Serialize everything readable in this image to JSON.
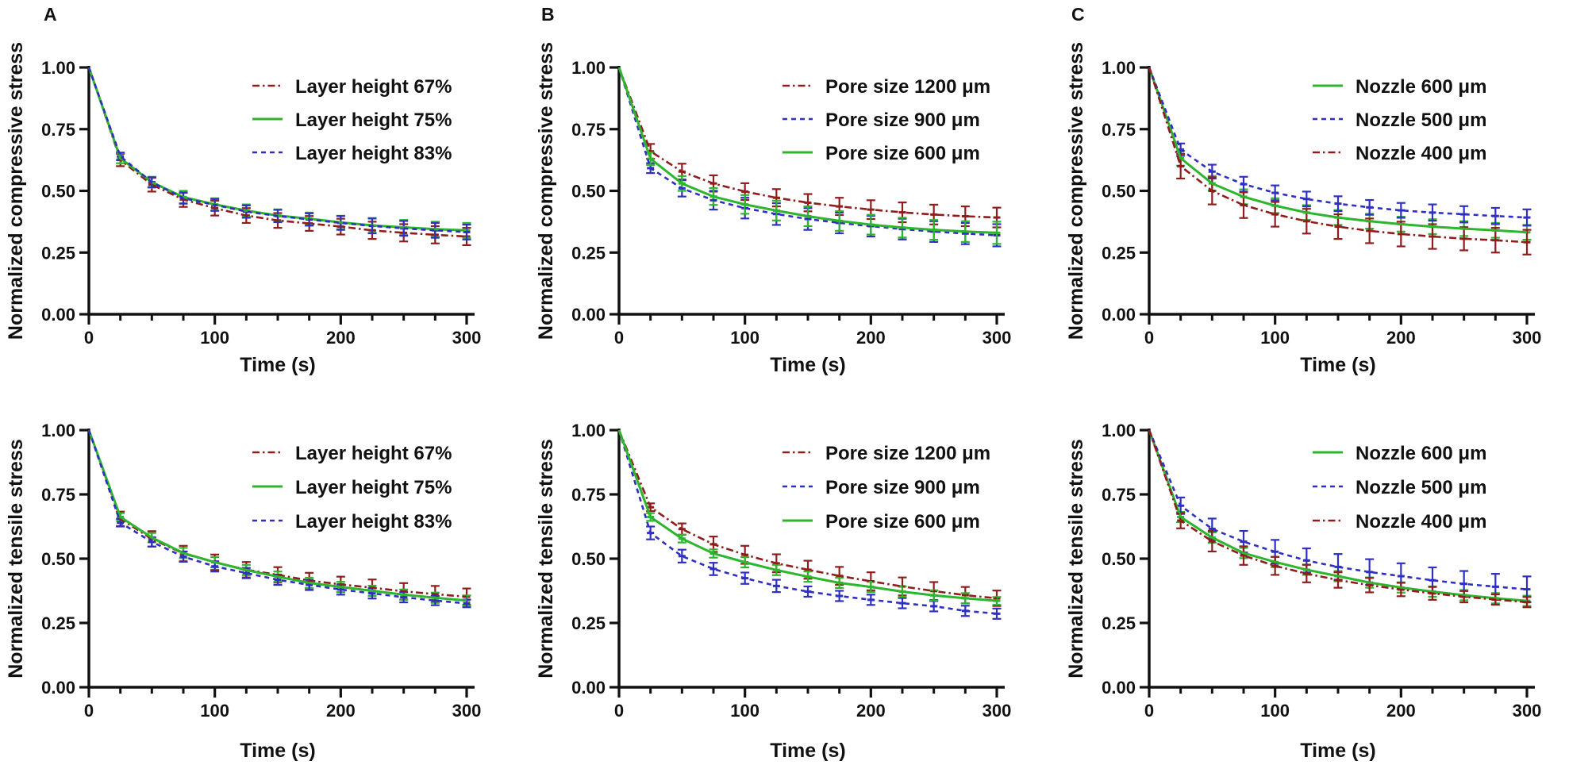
{
  "figure": {
    "background": "#ffffff",
    "colors": {
      "green": "#2db52d",
      "blue": "#2f2fc1",
      "dark_red": "#8f1d1d",
      "axis": "#111111",
      "text": "#111111"
    },
    "panel_letters": [
      "A",
      "B",
      "C"
    ],
    "xlabel": "Time (s)",
    "ylabel_top": "Normalized compressive stress",
    "ylabel_bottom": "Normalized tensile stress"
  },
  "chart_data": [
    {
      "id": "panel-a-compressive",
      "type": "line",
      "panel_letter": "A",
      "xlabel": "Time (s)",
      "ylabel": "Normalized compressive stress",
      "xlim": [
        0,
        300
      ],
      "ylim": [
        0,
        1.0
      ],
      "xticks": [
        0,
        100,
        200,
        300
      ],
      "xtick_minor_step": 25,
      "yticks": [
        "0.00",
        "0.25",
        "0.50",
        "0.75",
        "1.00"
      ],
      "grid": false,
      "legend_position": "top-right",
      "x": [
        0,
        25,
        50,
        75,
        100,
        125,
        150,
        175,
        200,
        225,
        250,
        275,
        300
      ],
      "series": [
        {
          "name": "Layer height 67%",
          "color": "dark_red",
          "style": "dashdot",
          "values": [
            1.0,
            0.625,
            0.525,
            0.465,
            0.43,
            0.4,
            0.38,
            0.368,
            0.355,
            0.34,
            0.33,
            0.322,
            0.315
          ],
          "err": [
            0,
            0.025,
            0.028,
            0.03,
            0.03,
            0.03,
            0.03,
            0.03,
            0.032,
            0.035,
            0.035,
            0.035,
            0.035
          ]
        },
        {
          "name": "Layer height 75%",
          "color": "green",
          "style": "solid",
          "values": [
            1.0,
            0.632,
            0.535,
            0.475,
            0.445,
            0.42,
            0.4,
            0.387,
            0.372,
            0.36,
            0.352,
            0.345,
            0.34
          ],
          "err": [
            0,
            0.02,
            0.022,
            0.025,
            0.025,
            0.025,
            0.025,
            0.025,
            0.027,
            0.03,
            0.03,
            0.03,
            0.03
          ]
        },
        {
          "name": "Layer height 83%",
          "color": "blue",
          "style": "dashed",
          "values": [
            1.0,
            0.64,
            0.535,
            0.47,
            0.443,
            0.416,
            0.398,
            0.384,
            0.37,
            0.358,
            0.348,
            0.34,
            0.333
          ],
          "err": [
            0,
            0.015,
            0.02,
            0.022,
            0.024,
            0.025,
            0.025,
            0.025,
            0.028,
            0.03,
            0.03,
            0.03,
            0.03
          ]
        }
      ]
    },
    {
      "id": "panel-b-compressive",
      "type": "line",
      "panel_letter": "B",
      "xlabel": "Time (s)",
      "ylabel": "Normalized compressive stress",
      "xlim": [
        0,
        300
      ],
      "ylim": [
        0,
        1.0
      ],
      "xticks": [
        0,
        100,
        200,
        300
      ],
      "xtick_minor_step": 25,
      "yticks": [
        "0.00",
        "0.25",
        "0.50",
        "0.75",
        "1.00"
      ],
      "grid": false,
      "legend_position": "top-right",
      "x": [
        0,
        25,
        50,
        75,
        100,
        125,
        150,
        175,
        200,
        225,
        250,
        275,
        300
      ],
      "series": [
        {
          "name": "Pore size 1200 μm",
          "color": "dark_red",
          "style": "dashdot",
          "values": [
            1.0,
            0.66,
            0.578,
            0.53,
            0.497,
            0.472,
            0.452,
            0.437,
            0.424,
            0.413,
            0.404,
            0.397,
            0.392
          ],
          "err": [
            0,
            0.03,
            0.032,
            0.033,
            0.034,
            0.035,
            0.035,
            0.035,
            0.038,
            0.04,
            0.04,
            0.04,
            0.04
          ]
        },
        {
          "name": "Pore size 900 μm",
          "color": "blue",
          "style": "dashed",
          "values": [
            1.0,
            0.592,
            0.51,
            0.462,
            0.43,
            0.406,
            0.386,
            0.37,
            0.357,
            0.345,
            0.335,
            0.327,
            0.32
          ],
          "err": [
            0,
            0.02,
            0.033,
            0.038,
            0.042,
            0.044,
            0.044,
            0.042,
            0.042,
            0.042,
            0.042,
            0.043,
            0.045
          ]
        },
        {
          "name": "Pore size 600 μm",
          "color": "green",
          "style": "solid",
          "values": [
            1.0,
            0.63,
            0.53,
            0.477,
            0.445,
            0.42,
            0.397,
            0.378,
            0.363,
            0.351,
            0.342,
            0.335,
            0.33
          ],
          "err": [
            0,
            0.025,
            0.03,
            0.034,
            0.038,
            0.04,
            0.04,
            0.04,
            0.04,
            0.04,
            0.04,
            0.042,
            0.045
          ]
        }
      ]
    },
    {
      "id": "panel-c-compressive",
      "type": "line",
      "panel_letter": "C",
      "xlabel": "Time (s)",
      "ylabel": "Normalized compressive stress",
      "xlim": [
        0,
        300
      ],
      "ylim": [
        0,
        1.0
      ],
      "xticks": [
        0,
        100,
        200,
        300
      ],
      "xtick_minor_step": 25,
      "yticks": [
        "0.00",
        "0.25",
        "0.50",
        "0.75",
        "1.00"
      ],
      "grid": false,
      "legend_position": "top-right",
      "x": [
        0,
        25,
        50,
        75,
        100,
        125,
        150,
        175,
        200,
        225,
        250,
        275,
        300
      ],
      "series": [
        {
          "name": "Nozzle 600 μm",
          "color": "green",
          "style": "solid",
          "values": [
            1.0,
            0.632,
            0.53,
            0.476,
            0.44,
            0.412,
            0.392,
            0.377,
            0.365,
            0.355,
            0.347,
            0.34,
            0.332
          ],
          "err": [
            0,
            0.03,
            0.03,
            0.03,
            0.03,
            0.03,
            0.03,
            0.03,
            0.03,
            0.03,
            0.03,
            0.03,
            0.03
          ]
        },
        {
          "name": "Nozzle 500 μm",
          "color": "blue",
          "style": "dashed",
          "values": [
            1.0,
            0.667,
            0.578,
            0.527,
            0.492,
            0.467,
            0.448,
            0.433,
            0.421,
            0.412,
            0.405,
            0.398,
            0.392
          ],
          "err": [
            0,
            0.025,
            0.028,
            0.03,
            0.03,
            0.03,
            0.03,
            0.03,
            0.03,
            0.033,
            0.033,
            0.033,
            0.033
          ]
        },
        {
          "name": "Nozzle 400 μm",
          "color": "dark_red",
          "style": "dashdot",
          "values": [
            1.0,
            0.6,
            0.5,
            0.442,
            0.405,
            0.377,
            0.355,
            0.338,
            0.325,
            0.315,
            0.306,
            0.3,
            0.292
          ],
          "err": [
            0,
            0.05,
            0.055,
            0.052,
            0.05,
            0.05,
            0.05,
            0.05,
            0.05,
            0.05,
            0.047,
            0.05,
            0.05
          ]
        }
      ]
    },
    {
      "id": "panel-a-tensile",
      "type": "line",
      "panel_letter": "",
      "xlabel": "Time (s)",
      "ylabel": "Normalized tensile stress",
      "xlim": [
        0,
        300
      ],
      "ylim": [
        0,
        1.0
      ],
      "xticks": [
        0,
        100,
        200,
        300
      ],
      "xtick_minor_step": 25,
      "yticks": [
        "0.00",
        "0.25",
        "0.50",
        "0.75",
        "1.00"
      ],
      "grid": false,
      "legend_position": "top-right",
      "x": [
        0,
        25,
        50,
        75,
        100,
        125,
        150,
        175,
        200,
        225,
        250,
        275,
        300
      ],
      "series": [
        {
          "name": "Layer height 67%",
          "color": "dark_red",
          "style": "dashdot",
          "values": [
            1.0,
            0.655,
            0.577,
            0.52,
            0.486,
            0.457,
            0.437,
            0.415,
            0.4,
            0.387,
            0.373,
            0.362,
            0.352
          ],
          "err": [
            0,
            0.028,
            0.03,
            0.03,
            0.03,
            0.03,
            0.03,
            0.03,
            0.03,
            0.032,
            0.032,
            0.032,
            0.032
          ]
        },
        {
          "name": "Layer height 75%",
          "color": "green",
          "style": "solid",
          "values": [
            1.0,
            0.662,
            0.582,
            0.522,
            0.486,
            0.456,
            0.43,
            0.406,
            0.39,
            0.375,
            0.36,
            0.348,
            0.337
          ],
          "err": [
            0,
            0.015,
            0.018,
            0.02,
            0.02,
            0.02,
            0.02,
            0.02,
            0.02,
            0.02,
            0.02,
            0.02,
            0.02
          ]
        },
        {
          "name": "Layer height 83%",
          "color": "blue",
          "style": "dashed",
          "values": [
            1.0,
            0.64,
            0.565,
            0.508,
            0.47,
            0.444,
            0.418,
            0.398,
            0.38,
            0.365,
            0.35,
            0.337,
            0.326
          ],
          "err": [
            0,
            0.015,
            0.018,
            0.02,
            0.02,
            0.02,
            0.02,
            0.02,
            0.02,
            0.02,
            0.02,
            0.018,
            0.015
          ]
        }
      ]
    },
    {
      "id": "panel-b-tensile",
      "type": "line",
      "panel_letter": "",
      "xlabel": "Time (s)",
      "ylabel": "Normalized tensile stress",
      "xlim": [
        0,
        300
      ],
      "ylim": [
        0,
        1.0
      ],
      "xticks": [
        0,
        100,
        200,
        300
      ],
      "xtick_minor_step": 25,
      "yticks": [
        "0.00",
        "0.25",
        "0.50",
        "0.75",
        "1.00"
      ],
      "grid": false,
      "legend_position": "top-right",
      "x": [
        0,
        25,
        50,
        75,
        100,
        125,
        150,
        175,
        200,
        225,
        250,
        275,
        300
      ],
      "series": [
        {
          "name": "Pore size 1200 μm",
          "color": "dark_red",
          "style": "dashdot",
          "values": [
            1.0,
            0.7,
            0.615,
            0.556,
            0.515,
            0.482,
            0.457,
            0.433,
            0.412,
            0.392,
            0.374,
            0.358,
            0.346
          ],
          "err": [
            0,
            0.015,
            0.022,
            0.03,
            0.035,
            0.035,
            0.035,
            0.035,
            0.035,
            0.035,
            0.035,
            0.032,
            0.03
          ]
        },
        {
          "name": "Pore size 900 μm",
          "color": "blue",
          "style": "dashed",
          "values": [
            1.0,
            0.6,
            0.51,
            0.46,
            0.424,
            0.394,
            0.372,
            0.355,
            0.34,
            0.327,
            0.315,
            0.297,
            0.286
          ],
          "err": [
            0,
            0.025,
            0.025,
            0.024,
            0.022,
            0.024,
            0.02,
            0.02,
            0.02,
            0.02,
            0.02,
            0.02,
            0.02
          ]
        },
        {
          "name": "Pore size 600 μm",
          "color": "green",
          "style": "solid",
          "values": [
            1.0,
            0.662,
            0.578,
            0.52,
            0.486,
            0.456,
            0.43,
            0.406,
            0.39,
            0.372,
            0.357,
            0.346,
            0.336
          ],
          "err": [
            0,
            0.015,
            0.015,
            0.016,
            0.02,
            0.02,
            0.02,
            0.02,
            0.02,
            0.02,
            0.02,
            0.02,
            0.015
          ]
        }
      ]
    },
    {
      "id": "panel-c-tensile",
      "type": "line",
      "panel_letter": "",
      "xlabel": "Time (s)",
      "ylabel": "Normalized tensile stress",
      "xlim": [
        0,
        300
      ],
      "ylim": [
        0,
        1.0
      ],
      "xticks": [
        0,
        100,
        200,
        300
      ],
      "xtick_minor_step": 25,
      "yticks": [
        "0.00",
        "0.25",
        "0.50",
        "0.75",
        "1.00"
      ],
      "grid": false,
      "legend_position": "top-right",
      "x": [
        0,
        25,
        50,
        75,
        100,
        125,
        150,
        175,
        200,
        225,
        250,
        275,
        300
      ],
      "series": [
        {
          "name": "Nozzle 600 μm",
          "color": "green",
          "style": "solid",
          "values": [
            1.0,
            0.662,
            0.582,
            0.522,
            0.487,
            0.457,
            0.432,
            0.407,
            0.388,
            0.372,
            0.358,
            0.346,
            0.336
          ],
          "err": [
            0,
            0.02,
            0.02,
            0.02,
            0.02,
            0.02,
            0.02,
            0.02,
            0.02,
            0.02,
            0.02,
            0.02,
            0.02
          ]
        },
        {
          "name": "Nozzle 500 μm",
          "color": "blue",
          "style": "dashed",
          "values": [
            1.0,
            0.706,
            0.616,
            0.566,
            0.527,
            0.493,
            0.468,
            0.448,
            0.432,
            0.416,
            0.402,
            0.391,
            0.381
          ],
          "err": [
            0,
            0.032,
            0.04,
            0.042,
            0.046,
            0.047,
            0.05,
            0.05,
            0.05,
            0.05,
            0.05,
            0.05,
            0.05
          ]
        },
        {
          "name": "Nozzle 400 μm",
          "color": "dark_red",
          "style": "dashdot",
          "values": [
            1.0,
            0.648,
            0.568,
            0.512,
            0.472,
            0.442,
            0.417,
            0.397,
            0.38,
            0.365,
            0.352,
            0.341,
            0.331
          ],
          "err": [
            0,
            0.03,
            0.04,
            0.036,
            0.035,
            0.034,
            0.03,
            0.028,
            0.026,
            0.025,
            0.022,
            0.02,
            0.02
          ]
        }
      ]
    }
  ]
}
